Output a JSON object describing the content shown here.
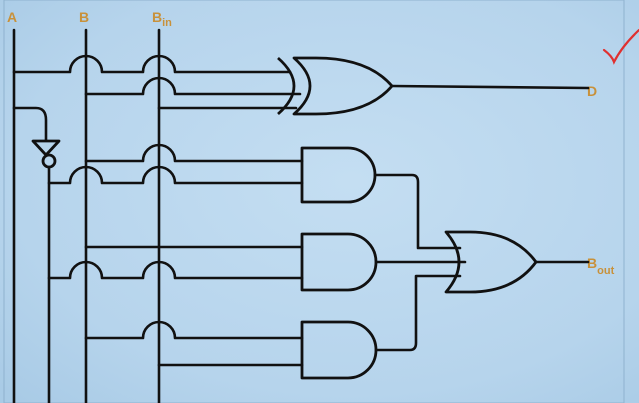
{
  "labels": {
    "a": "A",
    "b": "B",
    "bin_base": "B",
    "bin_sub": "in",
    "d": "D",
    "bout_base": "B",
    "bout_sub": "out"
  },
  "colors": {
    "board": "#b8d6ee",
    "ink": "#111111",
    "label": "#c8913a",
    "tick": "#e03030"
  }
}
